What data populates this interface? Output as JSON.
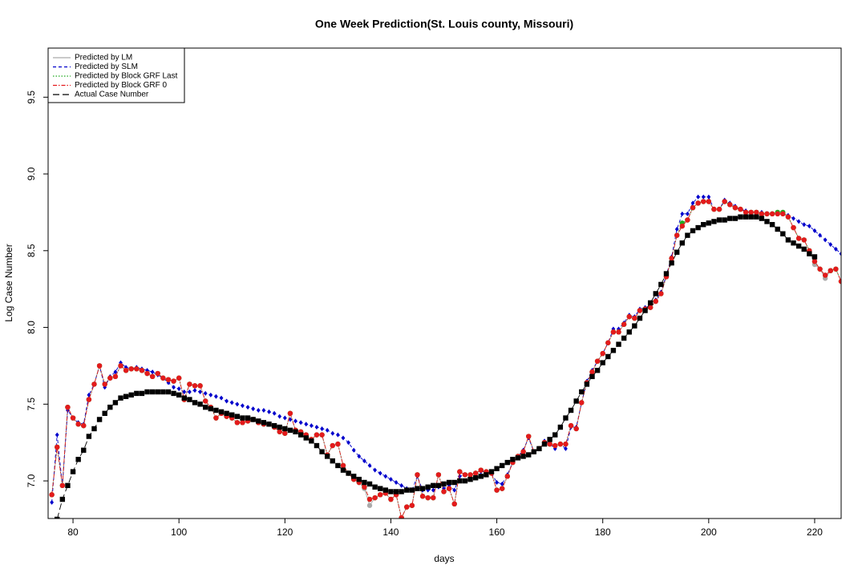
{
  "chart_data": {
    "type": "line",
    "title": "One Week Prediction(St. Louis county, Missouri)",
    "x_label": "days",
    "y_label": "Log Case Number",
    "xlim": [
      75.3,
      225
    ],
    "ylim": [
      6.755,
      9.82
    ],
    "xticks": [
      80,
      100,
      120,
      140,
      160,
      180,
      200,
      220
    ],
    "yticks": [
      {
        "value": 7,
        "label": "7.0"
      },
      {
        "value": 7.5,
        "label": "7.5"
      },
      {
        "value": 8,
        "label": "8.0"
      },
      {
        "value": 8.5,
        "label": "8.5"
      },
      {
        "value": 9,
        "label": "9.0"
      },
      {
        "value": 9.5,
        "label": "9.5"
      }
    ],
    "legend": "top-left",
    "x": [
      76,
      77,
      78,
      79,
      80,
      81,
      82,
      83,
      84,
      85,
      86,
      87,
      88,
      89,
      90,
      91,
      92,
      93,
      94,
      95,
      96,
      97,
      98,
      99,
      100,
      101,
      102,
      103,
      104,
      105,
      106,
      107,
      108,
      109,
      110,
      111,
      112,
      113,
      114,
      115,
      116,
      117,
      118,
      119,
      120,
      121,
      122,
      123,
      124,
      125,
      126,
      127,
      128,
      129,
      130,
      131,
      132,
      133,
      134,
      135,
      136,
      137,
      138,
      139,
      140,
      141,
      142,
      143,
      144,
      145,
      146,
      147,
      148,
      149,
      150,
      151,
      152,
      153,
      154,
      155,
      156,
      157,
      158,
      159,
      160,
      161,
      162,
      163,
      164,
      165,
      166,
      167,
      168,
      169,
      170,
      171,
      172,
      173,
      174,
      175,
      176,
      177,
      178,
      179,
      180,
      181,
      182,
      183,
      184,
      185,
      186,
      187,
      188,
      189,
      190,
      191,
      192,
      193,
      194,
      195,
      196,
      197,
      198,
      199,
      200,
      201,
      202,
      203,
      204,
      205,
      206,
      207,
      208,
      209,
      210,
      211,
      212,
      213,
      214,
      215,
      216,
      217,
      218,
      219,
      220,
      221,
      222,
      223,
      224,
      225
    ],
    "series": [
      {
        "name": "Predicted by LM",
        "color": "#aaaaaa",
        "line_style": "solid",
        "marker": "circle",
        "values": [
          6.91,
          7.22,
          6.97,
          7.48,
          7.41,
          7.37,
          7.36,
          7.53,
          7.63,
          7.75,
          7.63,
          7.67,
          7.68,
          7.75,
          7.72,
          7.73,
          7.73,
          7.72,
          7.7,
          7.68,
          7.7,
          7.67,
          7.66,
          7.65,
          7.67,
          7.53,
          7.63,
          7.62,
          7.62,
          7.52,
          7.48,
          7.41,
          7.44,
          7.42,
          7.41,
          7.38,
          7.38,
          7.39,
          7.4,
          7.38,
          7.37,
          7.37,
          7.35,
          7.32,
          7.31,
          7.44,
          7.33,
          7.32,
          7.3,
          7.27,
          7.3,
          7.3,
          7.17,
          7.23,
          7.24,
          7.1,
          7.05,
          7.01,
          6.99,
          6.95,
          6.84,
          6.89,
          6.91,
          6.92,
          6.88,
          6.91,
          6.76,
          6.83,
          6.84,
          7.04,
          6.9,
          6.89,
          6.89,
          7.04,
          6.93,
          6.95,
          6.85,
          7.06,
          7.04,
          7.04,
          7.05,
          7.07,
          7.06,
          7.05,
          6.94,
          6.95,
          7.03,
          7.12,
          7.16,
          7.19,
          7.29,
          7.19,
          7.21,
          7.25,
          7.24,
          7.23,
          7.24,
          7.24,
          7.36,
          7.34,
          7.51,
          7.64,
          7.71,
          7.78,
          7.83,
          7.9,
          7.97,
          7.97,
          8.02,
          8.07,
          8.06,
          8.11,
          8.12,
          8.13,
          8.17,
          8.22,
          8.33,
          8.45,
          8.6,
          8.66,
          8.7,
          8.78,
          8.81,
          8.82,
          8.82,
          8.77,
          8.77,
          8.82,
          8.8,
          8.78,
          8.77,
          8.75,
          8.75,
          8.75,
          8.74,
          8.74,
          8.74,
          8.74,
          8.74,
          8.72,
          8.65,
          8.58,
          8.57,
          8.5,
          8.41,
          8.38,
          8.32,
          8.37,
          8.38,
          8.3
        ]
      },
      {
        "name": "Predicted by SLM",
        "color": "#0000cc",
        "line_style": "dashed",
        "marker": "diamond",
        "values": [
          6.86,
          7.3,
          6.97,
          7.46,
          7.41,
          7.38,
          7.37,
          7.56,
          7.63,
          7.75,
          7.61,
          7.68,
          7.71,
          7.77,
          7.74,
          7.73,
          7.74,
          7.73,
          7.72,
          7.71,
          7.69,
          7.67,
          7.64,
          7.61,
          7.6,
          7.58,
          7.58,
          7.59,
          7.58,
          7.57,
          7.56,
          7.55,
          7.54,
          7.52,
          7.51,
          7.5,
          7.49,
          7.48,
          7.47,
          7.46,
          7.46,
          7.45,
          7.44,
          7.42,
          7.41,
          7.4,
          7.39,
          7.38,
          7.37,
          7.36,
          7.35,
          7.34,
          7.33,
          7.31,
          7.3,
          7.28,
          7.25,
          7.2,
          7.16,
          7.13,
          7.1,
          7.07,
          7.05,
          7.03,
          7.01,
          6.99,
          6.97,
          6.95,
          6.94,
          7.03,
          6.94,
          6.94,
          6.94,
          6.96,
          6.95,
          6.97,
          6.94,
          7.03,
          7.04,
          7.04,
          7.05,
          7.06,
          7.06,
          7.05,
          6.99,
          6.98,
          7.04,
          7.12,
          7.16,
          7.2,
          7.28,
          7.19,
          7.21,
          7.26,
          7.24,
          7.21,
          7.24,
          7.21,
          7.35,
          7.35,
          7.51,
          7.65,
          7.72,
          7.78,
          7.83,
          7.9,
          7.99,
          7.99,
          8.03,
          8.08,
          8.07,
          8.12,
          8.13,
          8.14,
          8.18,
          8.23,
          8.34,
          8.46,
          8.64,
          8.74,
          8.74,
          8.81,
          8.85,
          8.85,
          8.85,
          8.77,
          8.77,
          8.83,
          8.81,
          8.79,
          8.77,
          8.76,
          8.75,
          8.75,
          8.75,
          8.74,
          8.74,
          8.75,
          8.75,
          8.73,
          8.71,
          8.69,
          8.67,
          8.66,
          8.63,
          8.6,
          8.57,
          8.54,
          8.51,
          8.48
        ]
      },
      {
        "name": "Predicted by Block GRF Last",
        "color": "#22aa22",
        "line_style": "dotted",
        "marker": "circle",
        "values": [
          6.91,
          7.22,
          6.97,
          7.48,
          7.41,
          7.37,
          7.36,
          7.53,
          7.63,
          7.75,
          7.63,
          7.67,
          7.68,
          7.75,
          7.72,
          7.73,
          7.73,
          7.72,
          7.7,
          7.68,
          7.7,
          7.67,
          7.66,
          7.65,
          7.67,
          7.53,
          7.63,
          7.62,
          7.62,
          7.52,
          7.48,
          7.41,
          7.44,
          7.42,
          7.41,
          7.38,
          7.38,
          7.39,
          7.4,
          7.38,
          7.37,
          7.37,
          7.35,
          7.32,
          7.31,
          7.44,
          7.33,
          7.32,
          7.3,
          7.27,
          7.3,
          7.3,
          7.17,
          7.23,
          7.24,
          7.1,
          7.05,
          7.01,
          6.99,
          6.96,
          6.88,
          6.89,
          6.91,
          6.92,
          6.88,
          6.91,
          6.76,
          6.83,
          6.84,
          7.04,
          6.9,
          6.89,
          6.89,
          7.04,
          6.93,
          6.95,
          6.85,
          7.06,
          7.04,
          7.04,
          7.05,
          7.07,
          7.06,
          7.05,
          6.94,
          6.95,
          7.03,
          7.12,
          7.16,
          7.19,
          7.29,
          7.19,
          7.21,
          7.25,
          7.24,
          7.23,
          7.24,
          7.24,
          7.36,
          7.34,
          7.51,
          7.64,
          7.71,
          7.78,
          7.83,
          7.9,
          7.97,
          7.97,
          8.02,
          8.07,
          8.06,
          8.11,
          8.12,
          8.13,
          8.17,
          8.22,
          8.33,
          8.45,
          8.6,
          8.68,
          8.7,
          8.78,
          8.81,
          8.82,
          8.82,
          8.77,
          8.77,
          8.82,
          8.8,
          8.78,
          8.77,
          8.75,
          8.75,
          8.75,
          8.74,
          8.74,
          8.74,
          8.75,
          8.75,
          8.72,
          8.65,
          8.58,
          8.57,
          8.5,
          8.43,
          8.38,
          8.34,
          8.37,
          8.38,
          8.3
        ]
      },
      {
        "name": "Predicted by Block GRF 0",
        "color": "#e41a1c",
        "line_style": "dashdot",
        "marker": "circle",
        "values": [
          6.91,
          7.22,
          6.97,
          7.48,
          7.41,
          7.37,
          7.36,
          7.53,
          7.63,
          7.75,
          7.63,
          7.67,
          7.68,
          7.75,
          7.72,
          7.73,
          7.73,
          7.72,
          7.7,
          7.68,
          7.7,
          7.67,
          7.66,
          7.65,
          7.67,
          7.53,
          7.63,
          7.62,
          7.62,
          7.52,
          7.48,
          7.41,
          7.44,
          7.42,
          7.41,
          7.38,
          7.38,
          7.39,
          7.4,
          7.38,
          7.37,
          7.37,
          7.35,
          7.32,
          7.31,
          7.44,
          7.33,
          7.32,
          7.3,
          7.27,
          7.3,
          7.3,
          7.17,
          7.23,
          7.24,
          7.1,
          7.05,
          7.01,
          6.99,
          6.96,
          6.88,
          6.89,
          6.91,
          6.92,
          6.88,
          6.91,
          6.76,
          6.83,
          6.84,
          7.04,
          6.9,
          6.89,
          6.89,
          7.04,
          6.93,
          6.95,
          6.85,
          7.06,
          7.04,
          7.04,
          7.05,
          7.07,
          7.06,
          7.05,
          6.94,
          6.95,
          7.03,
          7.12,
          7.16,
          7.19,
          7.29,
          7.19,
          7.21,
          7.25,
          7.24,
          7.23,
          7.24,
          7.24,
          7.36,
          7.34,
          7.51,
          7.64,
          7.71,
          7.78,
          7.83,
          7.9,
          7.97,
          7.97,
          8.02,
          8.07,
          8.06,
          8.11,
          8.12,
          8.13,
          8.17,
          8.22,
          8.33,
          8.45,
          8.6,
          8.66,
          8.7,
          8.78,
          8.81,
          8.82,
          8.82,
          8.77,
          8.77,
          8.82,
          8.8,
          8.78,
          8.77,
          8.75,
          8.75,
          8.75,
          8.74,
          8.74,
          8.74,
          8.74,
          8.74,
          8.72,
          8.65,
          8.58,
          8.57,
          8.5,
          8.43,
          8.38,
          8.34,
          8.37,
          8.38,
          8.3
        ]
      },
      {
        "name": "Actual Case Number",
        "color": "#000000",
        "line_style": "longdash",
        "marker": "square",
        "values": [
          6.7,
          6.75,
          6.88,
          6.97,
          7.06,
          7.14,
          7.2,
          7.29,
          7.34,
          7.4,
          7.44,
          7.48,
          7.51,
          7.54,
          7.55,
          7.56,
          7.57,
          7.57,
          7.58,
          7.58,
          7.58,
          7.58,
          7.58,
          7.57,
          7.56,
          7.54,
          7.53,
          7.51,
          7.5,
          7.48,
          7.47,
          7.46,
          7.45,
          7.44,
          7.43,
          7.42,
          7.41,
          7.41,
          7.4,
          7.39,
          7.38,
          7.37,
          7.36,
          7.35,
          7.34,
          7.33,
          7.32,
          7.3,
          7.28,
          7.26,
          7.23,
          7.19,
          7.16,
          7.13,
          7.1,
          7.07,
          7.05,
          7.03,
          7.01,
          6.99,
          6.98,
          6.96,
          6.95,
          6.94,
          6.93,
          6.93,
          6.93,
          6.94,
          6.94,
          6.95,
          6.95,
          6.96,
          6.97,
          6.97,
          6.98,
          6.99,
          6.99,
          7.0,
          7.0,
          7.01,
          7.02,
          7.03,
          7.04,
          7.06,
          7.08,
          7.1,
          7.12,
          7.14,
          7.15,
          7.16,
          7.17,
          7.19,
          7.21,
          7.24,
          7.27,
          7.3,
          7.35,
          7.41,
          7.46,
          7.52,
          7.58,
          7.63,
          7.68,
          7.72,
          7.77,
          7.81,
          7.85,
          7.89,
          7.93,
          7.97,
          8.01,
          8.06,
          8.11,
          8.16,
          8.22,
          8.28,
          8.35,
          8.42,
          8.49,
          8.55,
          8.6,
          8.63,
          8.65,
          8.67,
          8.68,
          8.69,
          8.7,
          8.7,
          8.71,
          8.71,
          8.72,
          8.72,
          8.72,
          8.72,
          8.71,
          8.69,
          8.67,
          8.64,
          8.61,
          8.57,
          8.55,
          8.53,
          8.51,
          8.48,
          8.46,
          null,
          null,
          null,
          null,
          null
        ]
      }
    ]
  }
}
